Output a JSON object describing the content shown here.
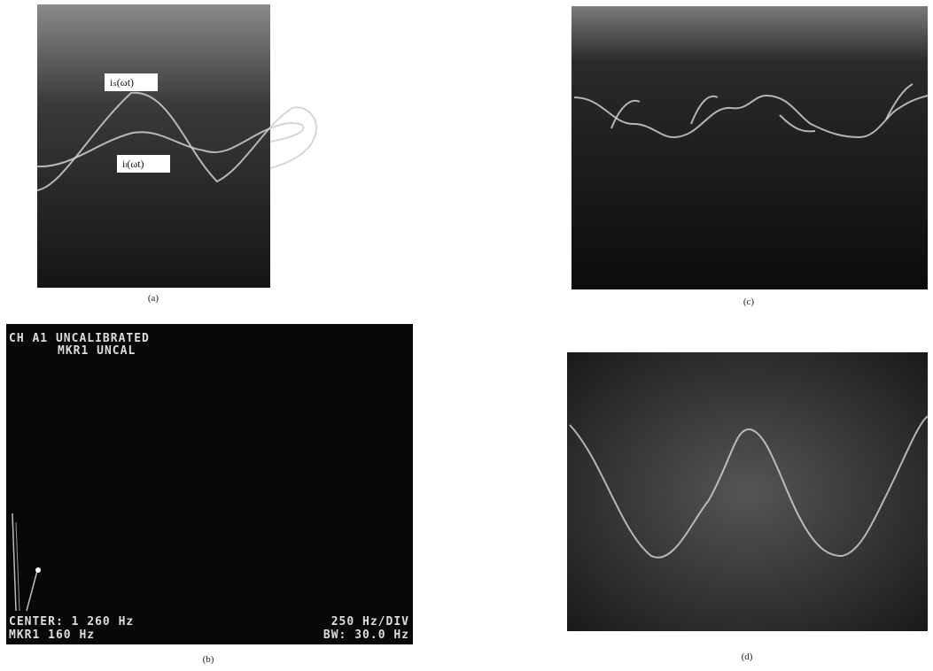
{
  "panels": [
    {
      "label": "(a)",
      "annotations": [
        "iₛ(ωt)",
        "iₗ(ωt)"
      ]
    },
    {
      "label": "(b)",
      "screen_text": [
        "CH A1 UNCALIBRATED",
        "MKR1 UNCAL",
        "CENTER: 1 260 Hz",
        "250 Hz/DIV",
        "MKR1 160 Hz",
        "BW: 30.0 Hz"
      ]
    },
    {
      "label": "(c)"
    },
    {
      "label": "(d)"
    }
  ]
}
